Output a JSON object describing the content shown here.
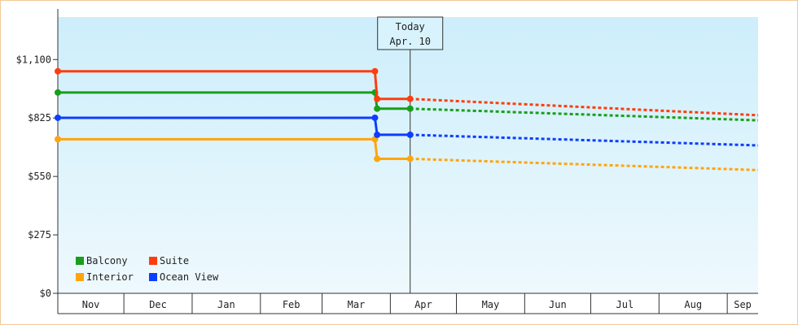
{
  "chart_data": {
    "type": "line",
    "title": "",
    "xlabel": "",
    "ylabel": "",
    "ylim": [
      0,
      1300
    ],
    "yticks": [
      0,
      275,
      550,
      825,
      1100
    ],
    "ytick_labels": [
      "$0",
      "$275",
      "$550",
      "$825",
      "$1,100"
    ],
    "x_month_labels": [
      "Nov",
      "Dec",
      "Jan",
      "Feb",
      "Mar",
      "Apr",
      "May",
      "Jun",
      "Jul",
      "Aug",
      "Sep"
    ],
    "x_start": "2022-11-01",
    "x_end": "2023-09-15",
    "today": {
      "date": "2023-04-10",
      "label_line1": "Today",
      "label_line2": "Apr. 10"
    },
    "background_gradient": [
      "#cdeefb",
      "#eef9fd"
    ],
    "legend_placement": "bottom-left",
    "series": [
      {
        "name": "Balcony",
        "color": "#1a9e1a",
        "points": [
          [
            "2022-11-01",
            945
          ],
          [
            "2023-03-25",
            945
          ],
          [
            "2023-03-26",
            869
          ],
          [
            "2023-04-10",
            869
          ]
        ],
        "forecast": [
          [
            "2023-04-10",
            869
          ],
          [
            "2023-09-15",
            814
          ]
        ]
      },
      {
        "name": "Suite",
        "color": "#ff3d0d",
        "points": [
          [
            "2022-11-01",
            1045
          ],
          [
            "2023-03-25",
            1045
          ],
          [
            "2023-03-26",
            915
          ],
          [
            "2023-04-10",
            915
          ]
        ],
        "forecast": [
          [
            "2023-04-10",
            915
          ],
          [
            "2023-09-15",
            838
          ]
        ]
      },
      {
        "name": "Interior",
        "color": "#ffa50d",
        "points": [
          [
            "2022-11-01",
            725
          ],
          [
            "2023-03-25",
            725
          ],
          [
            "2023-03-26",
            633
          ],
          [
            "2023-04-10",
            633
          ]
        ],
        "forecast": [
          [
            "2023-04-10",
            633
          ],
          [
            "2023-09-15",
            580
          ]
        ]
      },
      {
        "name": "Ocean View",
        "color": "#0d3dff",
        "points": [
          [
            "2022-11-01",
            826
          ],
          [
            "2023-03-25",
            826
          ],
          [
            "2023-03-26",
            746
          ],
          [
            "2023-04-10",
            746
          ]
        ],
        "forecast": [
          [
            "2023-04-10",
            746
          ],
          [
            "2023-09-15",
            696
          ]
        ]
      }
    ]
  }
}
